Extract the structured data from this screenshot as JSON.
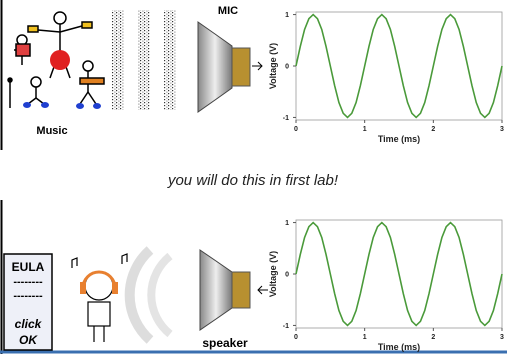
{
  "labels": {
    "mic": "MIC",
    "music": "Music",
    "note": "you will do this in first lab!",
    "eula": "EULA",
    "dash1": "--------",
    "dash2": "--------",
    "click": "click",
    "ok": "OK",
    "speaker": "speaker"
  },
  "chart_data": [
    {
      "type": "line",
      "xlabel": "Time (ms)",
      "ylabel": "Voltage (V)",
      "x": [
        0,
        0.0625,
        0.125,
        0.1875,
        0.25,
        0.3125,
        0.375,
        0.4375,
        0.5,
        0.5625,
        0.625,
        0.6875,
        0.75,
        0.8125,
        0.875,
        0.9375,
        1,
        1.0625,
        1.125,
        1.1875,
        1.25,
        1.3125,
        1.375,
        1.4375,
        1.5,
        1.5625,
        1.625,
        1.6875,
        1.75,
        1.8125,
        1.875,
        1.9375,
        2,
        2.0625,
        2.125,
        2.1875,
        2.25,
        2.3125,
        2.375,
        2.4375,
        2.5,
        2.5625,
        2.625,
        2.6875,
        2.75,
        2.8125,
        2.875,
        2.9375,
        3
      ],
      "series": [
        {
          "color": "#4a9a3a",
          "values": [
            0,
            0.38,
            0.71,
            0.92,
            1,
            0.92,
            0.71,
            0.38,
            0,
            -0.38,
            -0.71,
            -0.92,
            -1,
            -0.92,
            -0.71,
            -0.38,
            0,
            0.38,
            0.71,
            0.92,
            1,
            0.92,
            0.71,
            0.38,
            0,
            -0.38,
            -0.71,
            -0.92,
            -1,
            -0.92,
            -0.71,
            -0.38,
            0,
            0.38,
            0.71,
            0.92,
            1,
            0.92,
            0.71,
            0.38,
            0,
            -0.38,
            -0.71,
            -0.92,
            -1,
            -0.92,
            -0.71,
            -0.38,
            0
          ]
        }
      ],
      "xlim": [
        0,
        3
      ],
      "ylim": [
        -1.05,
        1.05
      ],
      "xticks": [
        0,
        1,
        2,
        3
      ],
      "yticks": [
        -1,
        0,
        1
      ]
    },
    {
      "type": "line",
      "xlabel": "Time (ms)",
      "ylabel": "Voltage (V)",
      "x": [
        0,
        0.0625,
        0.125,
        0.1875,
        0.25,
        0.3125,
        0.375,
        0.4375,
        0.5,
        0.5625,
        0.625,
        0.6875,
        0.75,
        0.8125,
        0.875,
        0.9375,
        1,
        1.0625,
        1.125,
        1.1875,
        1.25,
        1.3125,
        1.375,
        1.4375,
        1.5,
        1.5625,
        1.625,
        1.6875,
        1.75,
        1.8125,
        1.875,
        1.9375,
        2,
        2.0625,
        2.125,
        2.1875,
        2.25,
        2.3125,
        2.375,
        2.4375,
        2.5,
        2.5625,
        2.625,
        2.6875,
        2.75,
        2.8125,
        2.875,
        2.9375,
        3
      ],
      "series": [
        {
          "color": "#4a9a3a",
          "values": [
            0,
            0.38,
            0.71,
            0.92,
            1,
            0.92,
            0.71,
            0.38,
            0,
            -0.38,
            -0.71,
            -0.92,
            -1,
            -0.92,
            -0.71,
            -0.38,
            0,
            0.38,
            0.71,
            0.92,
            1,
            0.92,
            0.71,
            0.38,
            0,
            -0.38,
            -0.71,
            -0.92,
            -1,
            -0.92,
            -0.71,
            -0.38,
            0,
            0.38,
            0.71,
            0.92,
            1,
            0.92,
            0.71,
            0.38,
            0,
            -0.38,
            -0.71,
            -0.92,
            -1,
            -0.92,
            -0.71,
            -0.38,
            0
          ]
        }
      ],
      "xlim": [
        0,
        3
      ],
      "ylim": [
        -1.05,
        1.05
      ],
      "xticks": [
        0,
        1,
        2,
        3
      ],
      "yticks": [
        -1,
        0,
        1
      ]
    }
  ]
}
